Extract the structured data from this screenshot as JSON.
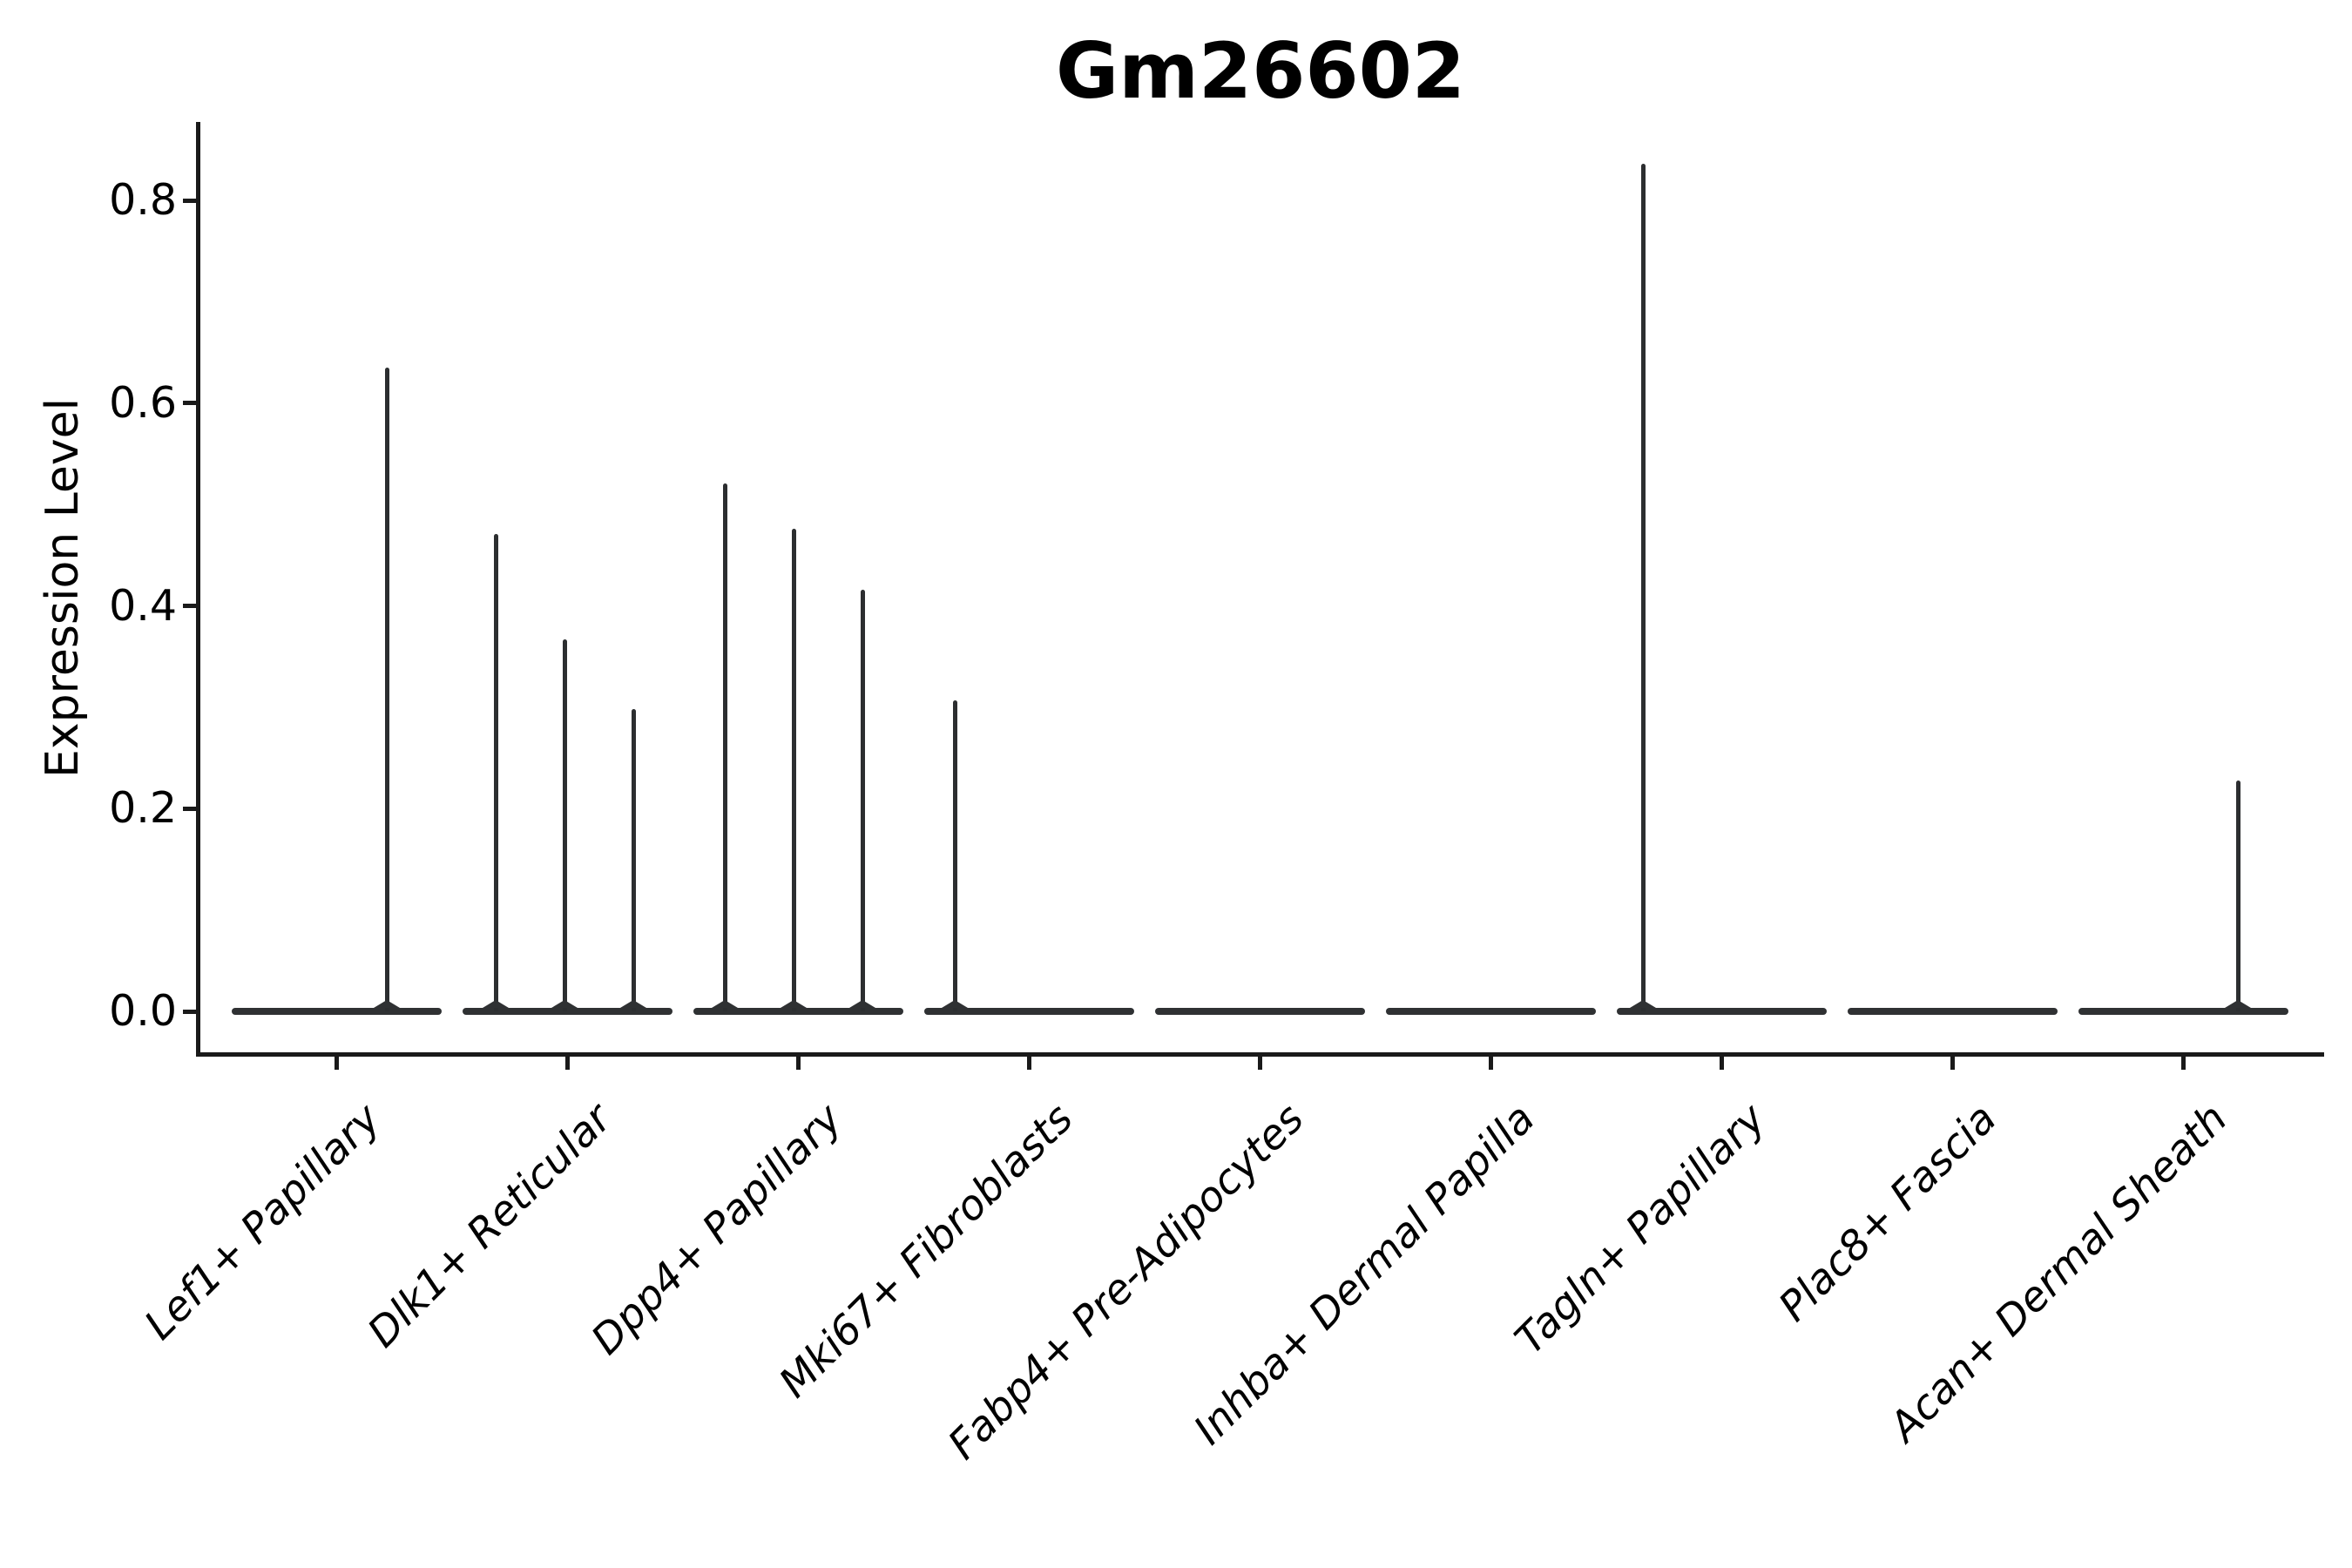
{
  "page": {
    "background": "#ffffff"
  },
  "chart_data": {
    "type": "violin",
    "title": "Gm26602",
    "ylabel": "Expression Level",
    "xlabel": "",
    "ylim": [
      -0.04,
      0.88
    ],
    "yticks": [
      0.0,
      0.2,
      0.4,
      0.6,
      0.8
    ],
    "ytick_labels": [
      "0.0",
      "0.2",
      "0.4",
      "0.6",
      "0.8"
    ],
    "grid": false,
    "legend": null,
    "categories": [
      "Lef1+ Papillary",
      "Dlk1+ Reticular",
      "Dpp4+ Papillary",
      "Mki67+ Fibroblasts",
      "Fabp4+ Pre-Adipocytes",
      "Inhba+ Dermal Papilla",
      "Tagln+ Papillary",
      "Plac8+ Fascia",
      "Acan+ Dermal Sheath"
    ],
    "violins": [
      {
        "category": "Lef1+ Papillary",
        "spikes": [
          {
            "offset": 58,
            "max": 0.635
          }
        ]
      },
      {
        "category": "Dlk1+ Reticular",
        "spikes": [
          {
            "offset": -82,
            "max": 0.471
          },
          {
            "offset": -3,
            "max": 0.367
          },
          {
            "offset": 76,
            "max": 0.298
          }
        ]
      },
      {
        "category": "Dpp4+ Papillary",
        "spikes": [
          {
            "offset": -84,
            "max": 0.521
          },
          {
            "offset": -5,
            "max": 0.476
          },
          {
            "offset": 74,
            "max": 0.416
          }
        ]
      },
      {
        "category": "Mki67+ Fibroblasts",
        "spikes": [
          {
            "offset": -85,
            "max": 0.307
          }
        ]
      },
      {
        "category": "Fabp4+ Pre-Adipocytes",
        "spikes": []
      },
      {
        "category": "Inhba+ Dermal Papilla",
        "spikes": []
      },
      {
        "category": "Tagln+ Papillary",
        "spikes": [
          {
            "offset": -90,
            "max": 0.836
          }
        ]
      },
      {
        "category": "Plac8+ Fascia",
        "spikes": []
      },
      {
        "category": "Acan+ Dermal Sheath",
        "spikes": [
          {
            "offset": 63,
            "max": 0.228
          }
        ]
      }
    ],
    "colors": {
      "violin": "#2e3032",
      "axis": "#1a1a1a",
      "text": "#000000"
    }
  }
}
